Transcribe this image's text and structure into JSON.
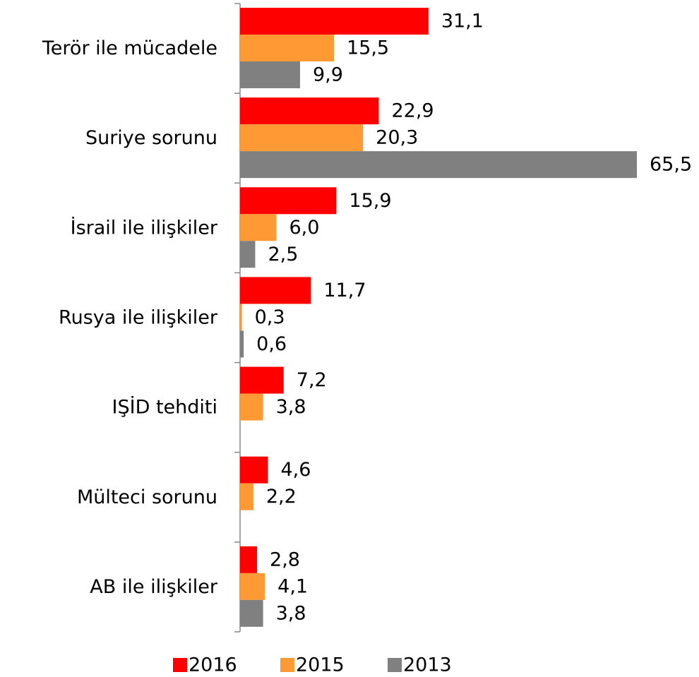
{
  "chart_data": {
    "type": "bar",
    "orientation": "horizontal",
    "categories": [
      "Terör ile mücadele",
      "Suriye sorunu",
      "İsrail ile ilişkiler",
      "Rusya ile ilişkiler",
      "IŞİD tehditi",
      "Mülteci sorunu",
      "AB ile ilişkiler"
    ],
    "series": [
      {
        "name": "2016",
        "color": "#ff0000",
        "values": [
          31.1,
          22.9,
          15.9,
          11.7,
          7.2,
          4.6,
          2.8
        ],
        "value_labels": [
          "31,1",
          "22,9",
          "15,9",
          "11,7",
          "7,2",
          "4,6",
          "2,8"
        ]
      },
      {
        "name": "2015",
        "color": "#ff9933",
        "values": [
          15.5,
          20.3,
          6.0,
          0.3,
          3.8,
          2.2,
          4.1
        ],
        "value_labels": [
          "15,5",
          "20,3",
          "6,0",
          "0,3",
          "3,8",
          "2,2",
          "4,1"
        ]
      },
      {
        "name": "2013",
        "color": "#808080",
        "values": [
          9.9,
          65.5,
          2.5,
          0.6,
          null,
          null,
          3.8
        ],
        "value_labels": [
          "9,9",
          "65,5",
          "2,5",
          "0,6",
          null,
          null,
          "3,8"
        ]
      }
    ],
    "legend": "bottom"
  }
}
